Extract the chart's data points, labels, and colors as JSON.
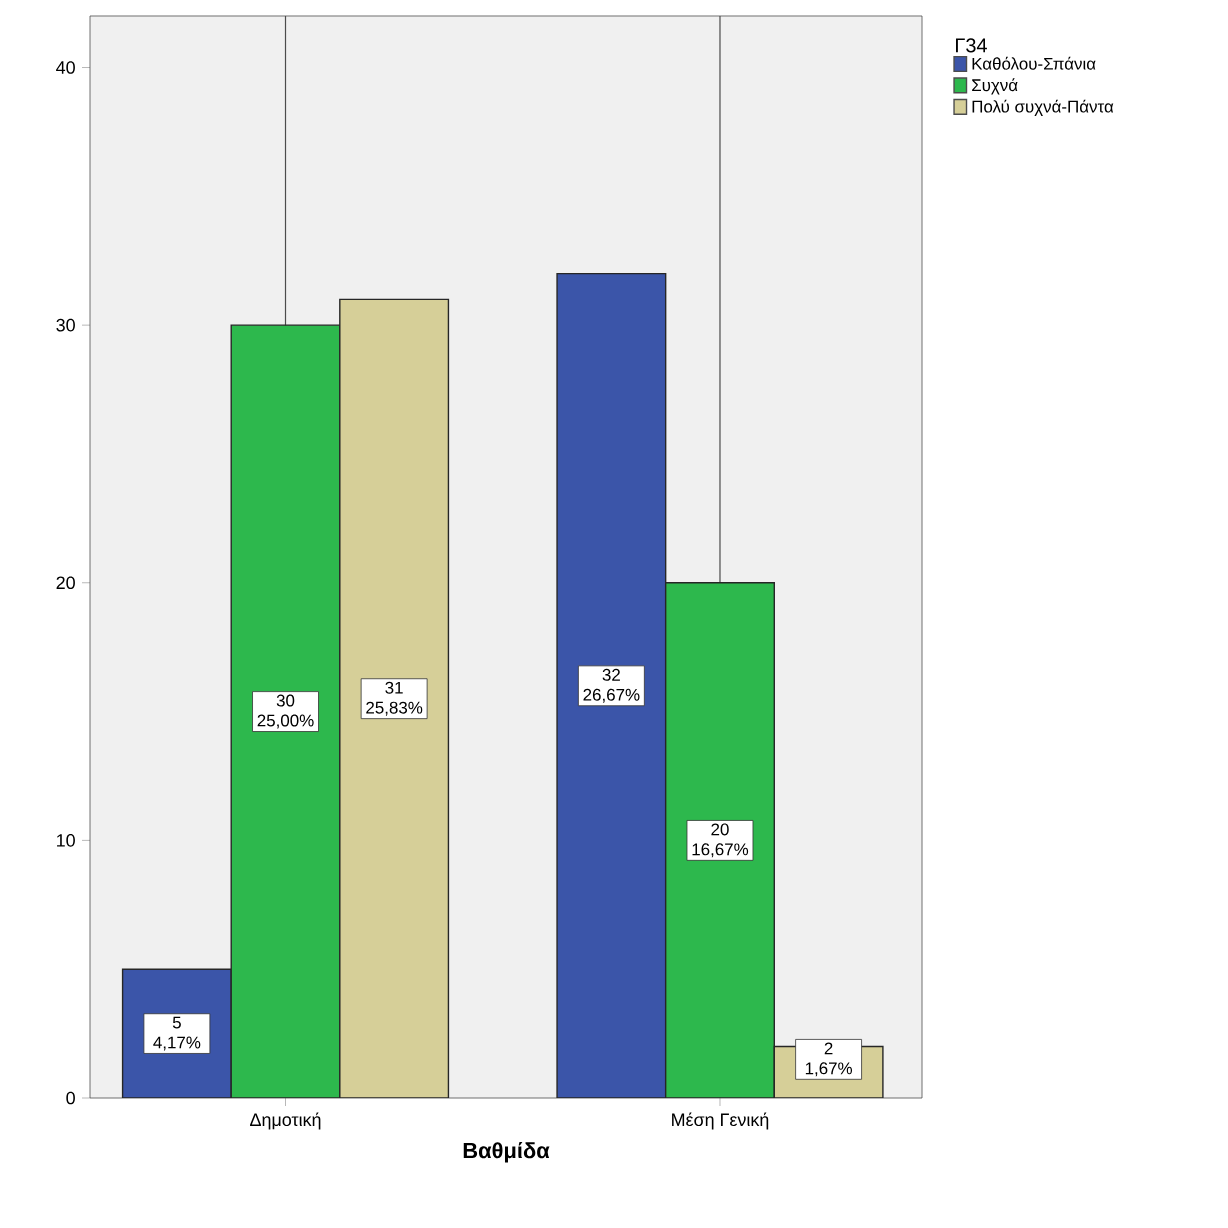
{
  "chart_data": {
    "type": "bar",
    "xlabel": "Βαθμίδα",
    "legend_title": "Γ34",
    "categories": [
      "Δημοτική",
      "Μέση Γενική"
    ],
    "series": [
      {
        "name": "Καθόλου-Σπάνια",
        "color": "#3b55a9",
        "values": [
          5,
          32
        ],
        "value_labels": [
          "5 4,17%",
          "32 26,67%"
        ]
      },
      {
        "name": "Συχνά",
        "color": "#2db84d",
        "values": [
          30,
          20
        ],
        "value_labels": [
          "30 25,00%",
          "20 16,67%"
        ]
      },
      {
        "name": "Πολύ συχνά-Πάντα",
        "color": "#d6cf98",
        "values": [
          31,
          2
        ],
        "value_labels": [
          "31 25,83%",
          "2 1,67%"
        ]
      }
    ],
    "ylim": [
      0,
      42
    ],
    "yticks": [
      0,
      10,
      20,
      30,
      40
    ],
    "grid": "x",
    "legend": "right"
  }
}
